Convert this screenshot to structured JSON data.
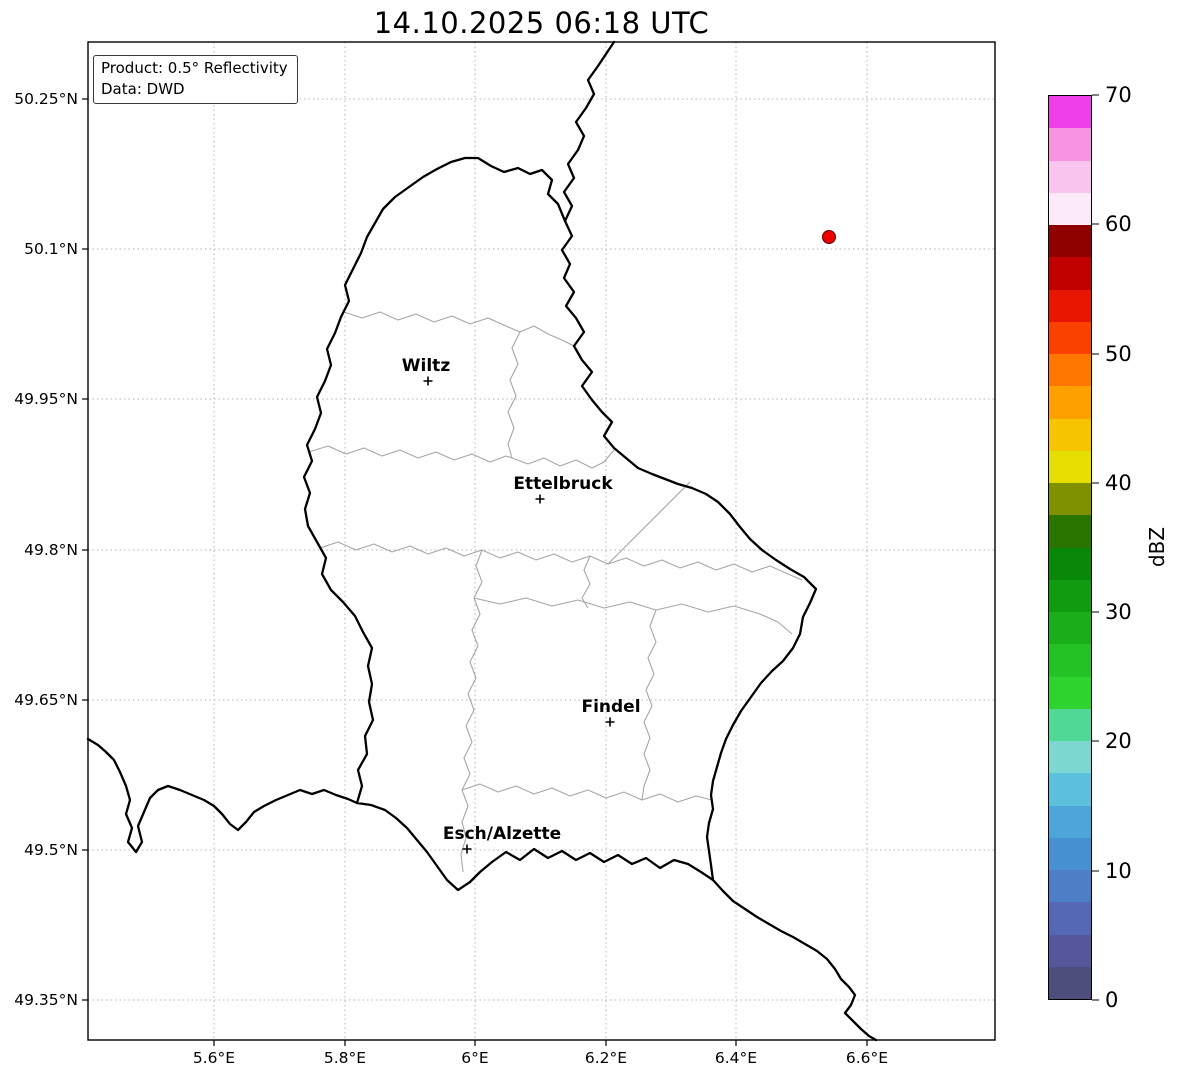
{
  "title": "14.10.2025 06:18 UTC",
  "info_box": {
    "product": "Product: 0.5° Reflectivity",
    "data_source": "Data: DWD"
  },
  "axes": {
    "lat_ticks": [
      "50.25°N",
      "50.1°N",
      "49.95°N",
      "49.8°N",
      "49.65°N",
      "49.5°N",
      "49.35°N"
    ],
    "lon_ticks": [
      "5.6°E",
      "5.8°E",
      "6°E",
      "6.2°E",
      "6.4°E",
      "6.6°E"
    ]
  },
  "cities": [
    {
      "name": "Wiltz"
    },
    {
      "name": "Ettelbruck"
    },
    {
      "name": "Findel"
    },
    {
      "name": "Esch/Alzette"
    }
  ],
  "radar_echo": {
    "color": "#ec0000"
  },
  "colorbar": {
    "label": "dBZ",
    "min": 0,
    "max": 70,
    "tick_labels": [
      "70",
      "60",
      "50",
      "40",
      "30",
      "20",
      "10",
      "0"
    ],
    "colors_bottom_to_top": [
      "#4e4e7c",
      "#56569a",
      "#5568b6",
      "#4e7ec6",
      "#4791d2",
      "#4da5d9",
      "#5cbfdb",
      "#7cd7d0",
      "#4fd896",
      "#2ed32e",
      "#24c224",
      "#1aae1a",
      "#119b11",
      "#098709",
      "#2a7500",
      "#7f9000",
      "#e6de00",
      "#f7c500",
      "#ff9f00",
      "#ff7700",
      "#fa4100",
      "#e81600",
      "#c10000",
      "#8f0000",
      "#fdeaf8",
      "#f9c4ee",
      "#f794e2",
      "#ee3fe8"
    ]
  }
}
